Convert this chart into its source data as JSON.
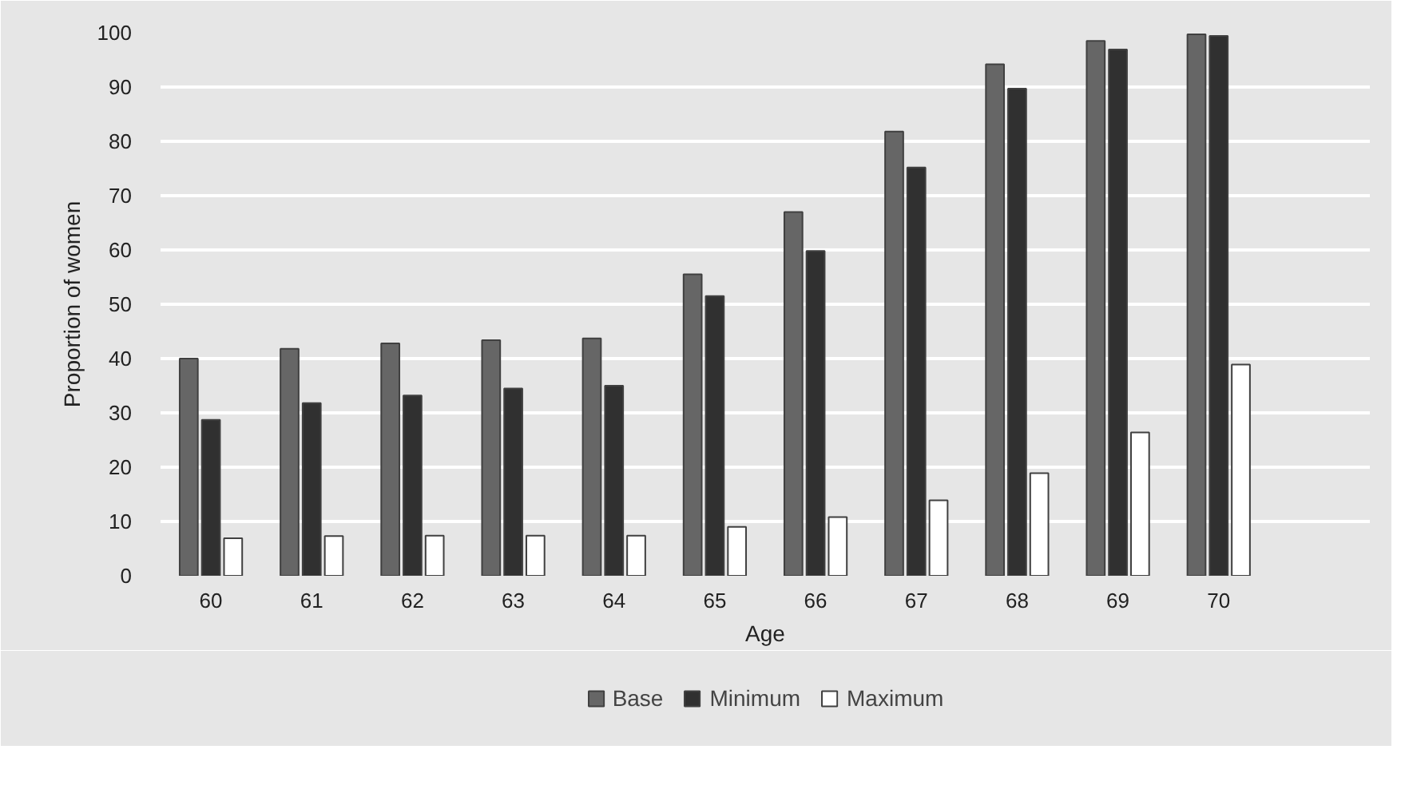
{
  "chart_data": {
    "type": "bar",
    "xlabel": "Age",
    "ylabel": "Proportion of women",
    "categories": [
      "60",
      "61",
      "62",
      "63",
      "64",
      "65",
      "66",
      "67",
      "68",
      "69",
      "70",
      null
    ],
    "series": [
      {
        "name": "Base",
        "color": "#666666",
        "values": [
          40.0,
          41.8,
          42.8,
          43.4,
          43.7,
          55.5,
          67.0,
          81.8,
          94.2,
          98.5,
          99.7,
          null
        ]
      },
      {
        "name": "Minimum",
        "color": "#303030",
        "values": [
          28.7,
          31.8,
          33.2,
          34.5,
          35.0,
          51.5,
          59.8,
          75.2,
          89.7,
          96.9,
          99.4,
          null
        ]
      },
      {
        "name": "Maximum",
        "color": "#ffffff",
        "values": [
          6.9,
          7.3,
          7.4,
          7.4,
          7.4,
          9.0,
          10.8,
          13.9,
          18.9,
          26.4,
          38.9,
          null
        ]
      }
    ],
    "ylim": [
      0,
      100
    ],
    "yticks": [
      0,
      10,
      20,
      30,
      40,
      50,
      60,
      70,
      80,
      90,
      100
    ],
    "grid": "y",
    "legend": "bottom"
  }
}
